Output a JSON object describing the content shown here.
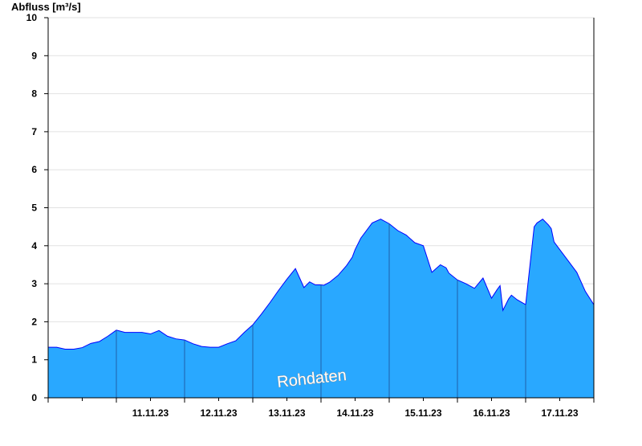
{
  "chart_data": {
    "type": "area",
    "title": "",
    "ylabel": "Abfluss [m³/s]",
    "xlabel": "",
    "ylim": [
      0,
      10
    ],
    "yticks": [
      0,
      1,
      2,
      3,
      4,
      5,
      6,
      7,
      8,
      9,
      10
    ],
    "xlim": [
      "2023-11-10 00:00",
      "2023-11-18 00:00"
    ],
    "day_labels": [
      "11.11.23",
      "12.11.23",
      "13.11.23",
      "14.11.23",
      "15.11.23",
      "16.11.23",
      "17.11.23"
    ],
    "grid": true,
    "watermark": "Rohdaten",
    "colors": {
      "fill": "#29a8ff",
      "line": "#0000ff",
      "day_line": "#1f5fa8",
      "grid": "#e2e2e2",
      "axis": "#000000"
    },
    "series": [
      {
        "x": [
          "2023-11-10 00:00",
          "2023-11-10 03:00",
          "2023-11-10 06:00",
          "2023-11-10 09:00",
          "2023-11-10 12:00",
          "2023-11-10 15:00",
          "2023-11-10 18:00",
          "2023-11-10 21:00",
          "2023-11-11 00:00",
          "2023-11-11 03:00",
          "2023-11-11 06:00",
          "2023-11-11 09:00",
          "2023-11-11 12:00",
          "2023-11-11 15:00",
          "2023-11-11 18:00",
          "2023-11-11 21:00",
          "2023-11-12 00:00",
          "2023-11-12 03:00",
          "2023-11-12 06:00",
          "2023-11-12 09:00",
          "2023-11-12 12:00",
          "2023-11-12 15:00",
          "2023-11-12 18:00",
          "2023-11-12 21:00",
          "2023-11-13 00:00",
          "2023-11-13 03:00",
          "2023-11-13 06:00",
          "2023-11-13 09:00",
          "2023-11-13 12:00",
          "2023-11-13 15:00",
          "2023-11-13 18:00",
          "2023-11-13 20:00",
          "2023-11-13 22:00",
          "2023-11-14 00:00",
          "2023-11-14 01:00",
          "2023-11-14 03:00",
          "2023-11-14 06:00",
          "2023-11-14 09:00",
          "2023-11-14 11:00",
          "2023-11-14 12:00",
          "2023-11-14 14:00",
          "2023-11-14 18:00",
          "2023-11-14 21:00",
          "2023-11-15 00:00",
          "2023-11-15 03:00",
          "2023-11-15 06:00",
          "2023-11-15 09:00",
          "2023-11-15 12:00",
          "2023-11-15 15:00",
          "2023-11-15 18:00",
          "2023-11-15 20:00",
          "2023-11-15 21:00",
          "2023-11-16 00:00",
          "2023-11-16 03:00",
          "2023-11-16 06:00",
          "2023-11-16 09:00",
          "2023-11-16 12:00",
          "2023-11-16 14:00",
          "2023-11-16 15:00",
          "2023-11-16 16:00",
          "2023-11-16 18:00",
          "2023-11-16 19:00",
          "2023-11-16 21:00",
          "2023-11-17 00:00",
          "2023-11-17 03:00",
          "2023-11-17 04:00",
          "2023-11-17 05:00",
          "2023-11-17 06:00",
          "2023-11-17 08:00",
          "2023-11-17 09:00",
          "2023-11-17 10:00",
          "2023-11-17 12:00",
          "2023-11-17 15:00",
          "2023-11-17 18:00",
          "2023-11-17 21:00",
          "2023-11-18 00:00"
        ],
        "y": [
          1.33,
          1.33,
          1.28,
          1.28,
          1.32,
          1.43,
          1.48,
          1.62,
          1.78,
          1.72,
          1.72,
          1.72,
          1.68,
          1.77,
          1.62,
          1.55,
          1.52,
          1.42,
          1.35,
          1.33,
          1.33,
          1.42,
          1.5,
          1.72,
          1.92,
          2.2,
          2.5,
          2.82,
          3.12,
          3.4,
          2.9,
          3.05,
          2.97,
          2.97,
          2.96,
          3.04,
          3.22,
          3.48,
          3.7,
          3.9,
          4.2,
          4.6,
          4.7,
          4.58,
          4.4,
          4.28,
          4.08,
          4.0,
          3.3,
          3.5,
          3.42,
          3.28,
          3.1,
          3.0,
          2.88,
          3.15,
          2.62,
          2.85,
          2.95,
          2.3,
          2.6,
          2.7,
          2.58,
          2.45,
          4.5,
          4.6,
          4.65,
          4.7,
          4.55,
          4.45,
          4.1,
          3.9,
          3.6,
          3.3,
          2.8,
          2.45
        ]
      }
    ]
  }
}
